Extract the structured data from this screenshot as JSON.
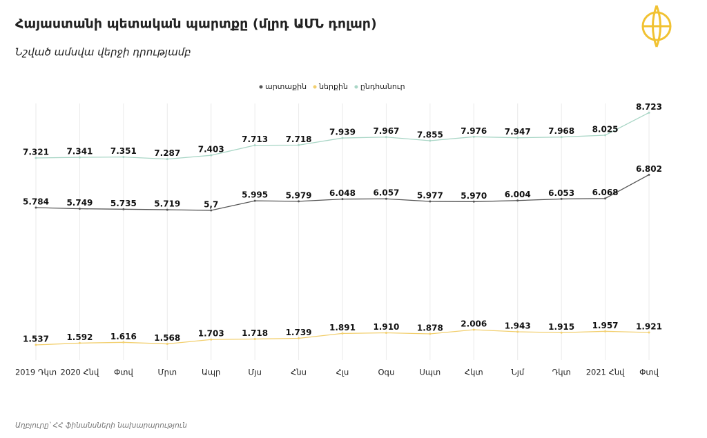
{
  "chart_data": {
    "type": "line",
    "title": "Հայաստանի պետական պարտքը (մլրդ ԱՄՆ դոլար)",
    "subtitle": "Նշված ամսվա վերջի դրությամբ",
    "source": "Աղբյուրը՝ ՀՀ ֆինանսների նախարարություն",
    "categories": [
      "2019 Դկտ",
      "2020 Հնվ",
      "Փտվ",
      "Մրտ",
      "Ապր",
      "Մյս",
      "Հնս",
      "Հլս",
      "Օգս",
      "Սպտ",
      "Հկտ",
      "Նյմ",
      "Դկտ",
      "2021 Հնվ",
      "Փտվ"
    ],
    "ylim": [
      0,
      10
    ],
    "grid": true,
    "legend": "top",
    "series": [
      {
        "name": "արտաքին",
        "color": "#555555",
        "values": [
          5.784,
          5.749,
          5.735,
          5.719,
          5.7,
          5.995,
          5.979,
          6.048,
          6.057,
          5.977,
          5.97,
          6.004,
          6.053,
          6.068,
          6.802
        ],
        "value_labels": [
          "5.784",
          "5.749",
          "5.735",
          "5.719",
          "5,7",
          "5.995",
          "5.979",
          "6.048",
          "6.057",
          "5.977",
          "5.970",
          "6.004",
          "6.053",
          "6.068",
          "6.802"
        ]
      },
      {
        "name": "ներքին",
        "color": "#f2cf6e",
        "values": [
          1.537,
          1.592,
          1.616,
          1.568,
          1.703,
          1.718,
          1.739,
          1.891,
          1.91,
          1.878,
          2.006,
          1.943,
          1.915,
          1.957,
          1.921
        ],
        "value_labels": [
          "1.537",
          "1.592",
          "1.616",
          "1.568",
          "1.703",
          "1.718",
          "1.739",
          "1.891",
          "1.910",
          "1.878",
          "2.006",
          "1.943",
          "1.915",
          "1.957",
          "1.921"
        ]
      },
      {
        "name": "ընդհանուր",
        "color": "#a9d6c6",
        "values": [
          7.321,
          7.341,
          7.351,
          7.287,
          7.403,
          7.713,
          7.718,
          7.939,
          7.967,
          7.855,
          7.976,
          7.947,
          7.968,
          8.025,
          8.723
        ],
        "value_labels": [
          "7.321",
          "7.341",
          "7.351",
          "7.287",
          "7.403",
          "7.713",
          "7.718",
          "7.939",
          "7.967",
          "7.855",
          "7.976",
          "7.947",
          "7.968",
          "8.025",
          "8.723"
        ]
      }
    ]
  }
}
